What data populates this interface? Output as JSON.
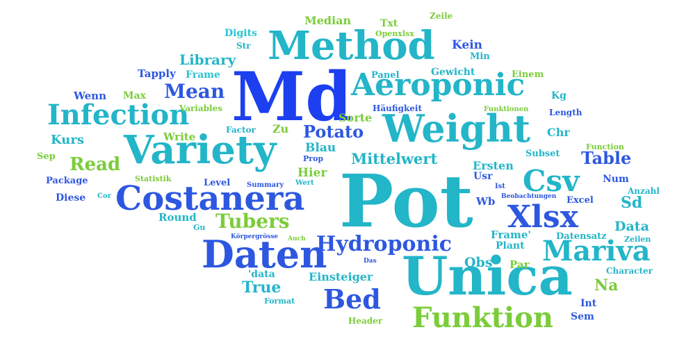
{
  "colors": {
    "blue": "#2d57e0",
    "dark_blue": "#1c3ff0",
    "teal": "#23b5c8",
    "cyan": "#27c4d2",
    "green": "#7bcc3a",
    "lime": "#86d13a"
  },
  "words": [
    {
      "text": "Pot",
      "color": "teal"
    },
    {
      "text": "Unica",
      "color": "teal"
    },
    {
      "text": "Md",
      "color": "dark_blue"
    },
    {
      "text": "Method",
      "color": "teal"
    },
    {
      "text": "Weight",
      "color": "teal"
    },
    {
      "text": "Variety",
      "color": "teal"
    },
    {
      "text": "Costanera",
      "color": "blue"
    },
    {
      "text": "Aeroponic",
      "color": "teal"
    },
    {
      "text": "Daten",
      "color": "blue"
    },
    {
      "text": "Infection",
      "color": "teal"
    },
    {
      "text": "Mariva",
      "color": "teal"
    },
    {
      "text": "Xlsx",
      "color": "blue"
    },
    {
      "text": "Csv",
      "color": "teal"
    },
    {
      "text": "Funktion",
      "color": "green"
    },
    {
      "text": "Hydroponic",
      "color": "blue"
    },
    {
      "text": "Bed",
      "color": "blue"
    },
    {
      "text": "Tubers",
      "color": "green"
    },
    {
      "text": "Mean",
      "color": "blue"
    },
    {
      "text": "Potato",
      "color": "blue"
    },
    {
      "text": "Library",
      "color": "teal"
    },
    {
      "text": "Read",
      "color": "green"
    },
    {
      "text": "Table",
      "color": "blue"
    },
    {
      "text": "Mittelwert",
      "color": "teal"
    },
    {
      "text": "Median",
      "color": "green"
    },
    {
      "text": "Kein",
      "color": "blue"
    },
    {
      "text": "Min",
      "color": "teal"
    },
    {
      "text": "Gewicht",
      "color": "teal"
    },
    {
      "text": "Txt",
      "color": "green"
    },
    {
      "text": "Zeile",
      "color": "green"
    },
    {
      "text": "Digits",
      "color": "cyan"
    },
    {
      "text": "Openxlsx",
      "color": "green"
    },
    {
      "text": "Str",
      "color": "teal"
    },
    {
      "text": "Frame",
      "color": "cyan"
    },
    {
      "text": "Tapply",
      "color": "blue"
    },
    {
      "text": "Panel",
      "color": "teal"
    },
    {
      "text": "Einem",
      "color": "green"
    },
    {
      "text": "Wenn",
      "color": "blue"
    },
    {
      "text": "Max",
      "color": "green"
    },
    {
      "text": "Kg",
      "color": "teal"
    },
    {
      "text": "Variables",
      "color": "green"
    },
    {
      "text": "Sorte",
      "color": "green"
    },
    {
      "text": "Häufigkeit",
      "color": "blue"
    },
    {
      "text": "Funktionen",
      "color": "green"
    },
    {
      "text": "Length",
      "color": "blue"
    },
    {
      "text": "Factor",
      "color": "teal"
    },
    {
      "text": "Zu",
      "color": "green"
    },
    {
      "text": "Chr",
      "color": "teal"
    },
    {
      "text": "Kurs",
      "color": "teal"
    },
    {
      "text": "Write",
      "color": "green"
    },
    {
      "text": "Blau",
      "color": "teal"
    },
    {
      "text": "Subset",
      "color": "teal"
    },
    {
      "text": "Function",
      "color": "green"
    },
    {
      "text": "Sep",
      "color": "green"
    },
    {
      "text": "Prop",
      "color": "blue"
    },
    {
      "text": "Ersten",
      "color": "teal"
    },
    {
      "text": "Hier",
      "color": "green"
    },
    {
      "text": "Usr",
      "color": "blue"
    },
    {
      "text": "Package",
      "color": "blue"
    },
    {
      "text": "Statistik",
      "color": "green"
    },
    {
      "text": "Level",
      "color": "blue"
    },
    {
      "text": "Summary",
      "color": "blue"
    },
    {
      "text": "Wert",
      "color": "teal"
    },
    {
      "text": "Ist",
      "color": "blue"
    },
    {
      "text": "Num",
      "color": "blue"
    },
    {
      "text": "Anzahl",
      "color": "teal"
    },
    {
      "text": "Diese",
      "color": "blue"
    },
    {
      "text": "Cor",
      "color": "teal"
    },
    {
      "text": "Wb",
      "color": "blue"
    },
    {
      "text": "Beobachtungen",
      "color": "blue"
    },
    {
      "text": "Excel",
      "color": "blue"
    },
    {
      "text": "Sd",
      "color": "teal"
    },
    {
      "text": "Round",
      "color": "teal"
    },
    {
      "text": "Gu",
      "color": "teal"
    },
    {
      "text": "Data",
      "color": "teal"
    },
    {
      "text": "Körpergrösse",
      "color": "blue"
    },
    {
      "text": "Auch",
      "color": "green"
    },
    {
      "text": "Frame'",
      "color": "teal"
    },
    {
      "text": "Datensatz",
      "color": "teal"
    },
    {
      "text": "Plant",
      "color": "teal"
    },
    {
      "text": "Zeilen",
      "color": "teal"
    },
    {
      "text": "Obs",
      "color": "teal"
    },
    {
      "text": "Par",
      "color": "green"
    },
    {
      "text": "Das",
      "color": "blue"
    },
    {
      "text": "'data",
      "color": "teal"
    },
    {
      "text": "Character",
      "color": "teal"
    },
    {
      "text": "True",
      "color": "teal"
    },
    {
      "text": "Einsteiger",
      "color": "teal"
    },
    {
      "text": "Na",
      "color": "green"
    },
    {
      "text": "Format",
      "color": "teal"
    },
    {
      "text": "Int",
      "color": "blue"
    },
    {
      "text": "Header",
      "color": "green"
    },
    {
      "text": "Sem",
      "color": "blue"
    }
  ]
}
